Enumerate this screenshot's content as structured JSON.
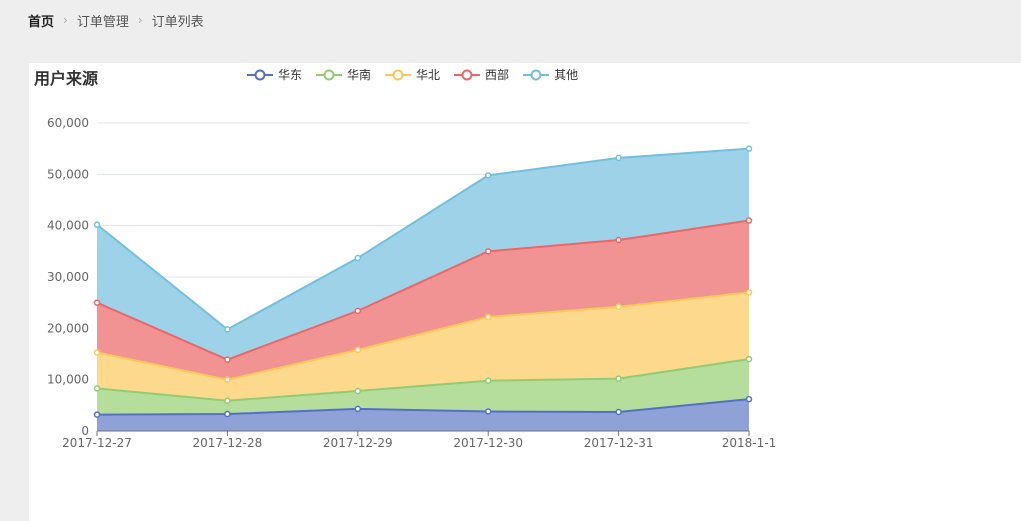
{
  "breadcrumb": {
    "items": [
      "首页",
      "订单管理",
      "订单列表"
    ]
  },
  "chart_data": {
    "type": "area",
    "stacked": true,
    "title": "用户来源",
    "categories": [
      "2017-12-27",
      "2017-12-28",
      "2017-12-29",
      "2017-12-30",
      "2017-12-31",
      "2018-1-1"
    ],
    "ylim": [
      0,
      60000
    ],
    "yticks": [
      0,
      10000,
      20000,
      30000,
      40000,
      50000,
      60000
    ],
    "ytick_labels": [
      "0",
      "10,000",
      "20,000",
      "30,000",
      "40,000",
      "50,000",
      "60,000"
    ],
    "grid": true,
    "legend_position": "top",
    "series": [
      {
        "name": "华东",
        "color": "#5470c6",
        "fill": "#8fa2d8",
        "values": [
          3200,
          3300,
          4300,
          3800,
          3700,
          6200
        ]
      },
      {
        "name": "华南",
        "color": "#91cc75",
        "fill": "#b5dd9c",
        "values": [
          5100,
          2600,
          3500,
          6000,
          6500,
          7800
        ]
      },
      {
        "name": "华北",
        "color": "#fac858",
        "fill": "#fcd98c",
        "values": [
          7000,
          4100,
          8000,
          12400,
          14000,
          13000
        ]
      },
      {
        "name": "西部",
        "color": "#ee6666",
        "fill": "#f29393",
        "values": [
          9700,
          3900,
          7600,
          12800,
          13000,
          14000
        ]
      },
      {
        "name": "其他",
        "color": "#73c0de",
        "fill": "#9dd2e8",
        "values": [
          15200,
          5900,
          10300,
          14800,
          16000,
          14000
        ]
      }
    ]
  }
}
